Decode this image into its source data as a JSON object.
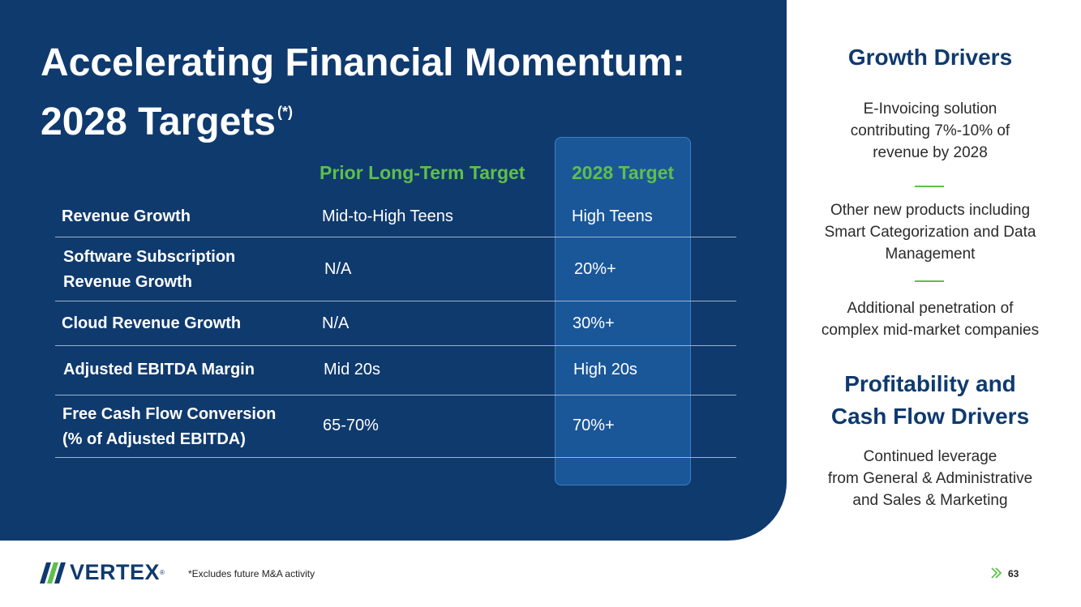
{
  "title": {
    "line1": "Accelerating Financial Momentum:",
    "line2": "2028 Targets",
    "marker": "(*)"
  },
  "table": {
    "headers": {
      "prior": "Prior Long-Term Target",
      "target": "2028 Target"
    },
    "rows": [
      {
        "label_lines": [
          "Revenue Growth"
        ],
        "prior": "Mid-to-High Teens",
        "target": "High Teens"
      },
      {
        "label_lines": [
          "Software Subscription",
          "Revenue Growth"
        ],
        "prior": "N/A",
        "target": "20%+"
      },
      {
        "label_lines": [
          "Cloud Revenue Growth"
        ],
        "prior": "N/A",
        "target": "30%+"
      },
      {
        "label_lines": [
          "Adjusted EBITDA Margin"
        ],
        "prior": "Mid 20s",
        "target": "High 20s"
      },
      {
        "label_lines": [
          "Free Cash Flow Conversion",
          "(% of Adjusted EBITDA)"
        ],
        "prior": "65-70%",
        "target": "70%+"
      }
    ]
  },
  "sidebar": {
    "growth_heading": "Growth Drivers",
    "growth_items": [
      [
        "E-Invoicing solution",
        "contributing 7%-10% of",
        "revenue by 2028"
      ],
      [
        "Other new products including",
        "Smart Categorization and Data",
        "Management"
      ],
      [
        "Additional penetration of",
        "complex mid-market companies"
      ]
    ],
    "profit_heading": [
      "Profitability and",
      "Cash Flow Drivers"
    ],
    "profit_items": [
      [
        "Continued leverage",
        "from General & Administrative",
        "and Sales & Marketing"
      ]
    ]
  },
  "footer": {
    "logo_text": "VERTEX",
    "logo_reg": "®",
    "footnote": "*Excludes future M&A activity",
    "page_number": "63"
  },
  "colors": {
    "navy": "#0f3a6e",
    "highlight_column": "#1a5799",
    "accent_green": "#5fbf4b"
  }
}
